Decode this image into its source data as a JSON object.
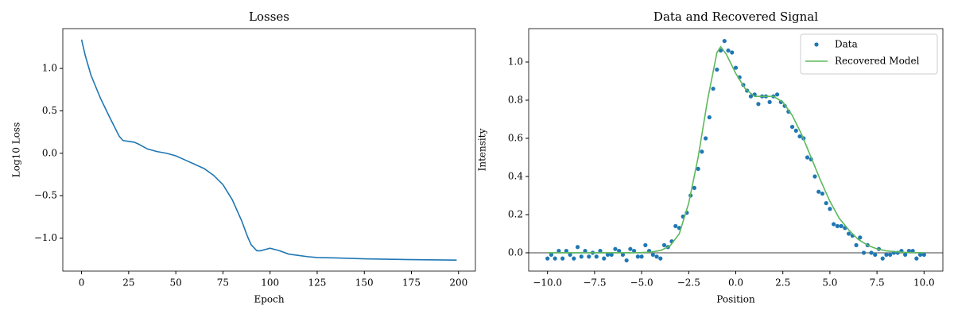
{
  "chart_data": [
    {
      "type": "line",
      "title": "Losses",
      "xlabel": "Epoch",
      "ylabel": "Log10 Loss",
      "color": "#1f77b4",
      "x": [
        0,
        2,
        5,
        10,
        15,
        20,
        22,
        25,
        28,
        30,
        35,
        40,
        45,
        50,
        55,
        60,
        65,
        70,
        75,
        80,
        85,
        88,
        90,
        93,
        95,
        100,
        105,
        110,
        120,
        125,
        135,
        150,
        175,
        199
      ],
      "values": [
        1.34,
        1.15,
        0.92,
        0.65,
        0.42,
        0.2,
        0.15,
        0.14,
        0.13,
        0.11,
        0.05,
        0.02,
        0.0,
        -0.03,
        -0.08,
        -0.13,
        -0.18,
        -0.26,
        -0.37,
        -0.55,
        -0.8,
        -0.98,
        -1.08,
        -1.15,
        -1.15,
        -1.12,
        -1.15,
        -1.19,
        -1.22,
        -1.23,
        -1.235,
        -1.245,
        -1.255,
        -1.26
      ],
      "xlim": [
        -9.95,
        208.95
      ],
      "xticks": [
        0,
        25,
        50,
        75,
        100,
        125,
        150,
        175,
        200
      ],
      "ylim": [
        -1.39,
        1.47
      ],
      "yticks": [
        {
          "value": -1.0,
          "label": "−1.0"
        },
        {
          "value": -0.5,
          "label": "−0.5"
        },
        {
          "value": 0,
          "label": "0.0"
        },
        {
          "value": 0.5,
          "label": "0.5"
        },
        {
          "value": 1.0,
          "label": "1.0"
        }
      ]
    },
    {
      "type": "scatter",
      "title": "Data and Recovered Signal",
      "xlabel": "Position",
      "ylabel": "Intensity",
      "legend": "upper right",
      "hline": {
        "y": 0,
        "color": "#808080"
      },
      "series": [
        {
          "name": "Data",
          "type": "scatter",
          "color": "#1f77b4",
          "x": [
            -10.0,
            -9.8,
            -9.6,
            -9.4,
            -9.2,
            -9.0,
            -8.8,
            -8.6,
            -8.4,
            -8.2,
            -8.0,
            -7.8,
            -7.6,
            -7.4,
            -7.2,
            -7.0,
            -6.8,
            -6.6,
            -6.4,
            -6.2,
            -6.0,
            -5.8,
            -5.6,
            -5.4,
            -5.2,
            -5.0,
            -4.8,
            -4.6,
            -4.4,
            -4.2,
            -4.0,
            -3.8,
            -3.6,
            -3.4,
            -3.2,
            -3.0,
            -2.8,
            -2.6,
            -2.4,
            -2.2,
            -2.0,
            -1.8,
            -1.6,
            -1.4,
            -1.2,
            -1.0,
            -0.8,
            -0.6,
            -0.4,
            -0.2,
            0.0,
            0.2,
            0.4,
            0.6,
            0.8,
            1.0,
            1.2,
            1.4,
            1.6,
            1.8,
            2.0,
            2.2,
            2.4,
            2.6,
            2.8,
            3.0,
            3.2,
            3.4,
            3.6,
            3.8,
            4.0,
            4.2,
            4.4,
            4.6,
            4.8,
            5.0,
            5.2,
            5.4,
            5.6,
            5.8,
            6.0,
            6.2,
            6.4,
            6.6,
            6.8,
            7.0,
            7.2,
            7.4,
            7.6,
            7.8,
            8.0,
            8.2,
            8.4,
            8.6,
            8.8,
            9.0,
            9.2,
            9.4,
            9.6,
            9.8,
            10.0
          ],
          "values": [
            -0.03,
            -0.01,
            -0.03,
            0.01,
            -0.03,
            0.01,
            -0.01,
            -0.03,
            0.03,
            -0.02,
            0.01,
            -0.02,
            0.0,
            -0.02,
            0.01,
            -0.03,
            -0.01,
            -0.01,
            0.02,
            0.01,
            -0.01,
            -0.04,
            0.02,
            0.01,
            -0.02,
            -0.02,
            0.04,
            0.01,
            -0.01,
            -0.02,
            -0.03,
            0.04,
            0.03,
            0.06,
            0.14,
            0.13,
            0.19,
            0.21,
            0.3,
            0.34,
            0.44,
            0.53,
            0.6,
            0.71,
            0.86,
            0.96,
            1.06,
            1.11,
            1.06,
            1.05,
            0.97,
            0.92,
            0.88,
            0.85,
            0.82,
            0.83,
            0.78,
            0.82,
            0.82,
            0.79,
            0.82,
            0.83,
            0.79,
            0.77,
            0.74,
            0.66,
            0.64,
            0.61,
            0.6,
            0.5,
            0.49,
            0.4,
            0.32,
            0.31,
            0.26,
            0.23,
            0.15,
            0.14,
            0.14,
            0.13,
            0.1,
            0.09,
            0.04,
            0.08,
            0.0,
            0.04,
            0.0,
            -0.01,
            0.02,
            -0.03,
            -0.01,
            -0.01,
            0.0,
            0.0,
            0.01,
            -0.01,
            0.01,
            0.01,
            -0.03,
            -0.01,
            -0.01
          ]
        },
        {
          "name": "Recovered Model",
          "type": "line",
          "color": "#5cb85c",
          "x": [
            -10,
            -9.5,
            -9,
            -8.5,
            -8,
            -7.5,
            -7,
            -6.5,
            -6,
            -5.5,
            -5,
            -4.5,
            -4,
            -3.5,
            -3,
            -2.5,
            -2,
            -1.5,
            -1,
            -0.8,
            -0.5,
            0,
            0.5,
            1,
            1.5,
            2,
            2.5,
            3,
            3.5,
            4,
            4.5,
            5,
            5.5,
            6,
            6.5,
            7,
            7.5,
            8,
            8.5,
            9,
            9.5,
            10
          ],
          "values": [
            0,
            0,
            0,
            0,
            0,
            0,
            0,
            0,
            0,
            0,
            0.001,
            0.004,
            0.012,
            0.035,
            0.1,
            0.26,
            0.5,
            0.8,
            1.05,
            1.08,
            1.04,
            0.94,
            0.86,
            0.82,
            0.82,
            0.82,
            0.79,
            0.72,
            0.62,
            0.5,
            0.38,
            0.27,
            0.18,
            0.12,
            0.07,
            0.04,
            0.02,
            0.01,
            0.005,
            0.002,
            0.001,
            0
          ]
        }
      ],
      "xlim": [
        -11,
        11
      ],
      "xticks": [
        {
          "value": -10,
          "label": "−10.0"
        },
        {
          "value": -7.5,
          "label": "−7.5"
        },
        {
          "value": -5,
          "label": "−5.0"
        },
        {
          "value": -2.5,
          "label": "−2.5"
        },
        {
          "value": 0,
          "label": "0.0"
        },
        {
          "value": 2.5,
          "label": "2.5"
        },
        {
          "value": 5,
          "label": "5.0"
        },
        {
          "value": 7.5,
          "label": "7.5"
        },
        {
          "value": 10,
          "label": "10.0"
        }
      ],
      "ylim": [
        -0.096,
        1.175
      ],
      "yticks": [
        {
          "value": 0,
          "label": "0.0"
        },
        0.2,
        0.4,
        0.6,
        0.8,
        {
          "value": 1,
          "label": "1.0"
        }
      ]
    }
  ]
}
